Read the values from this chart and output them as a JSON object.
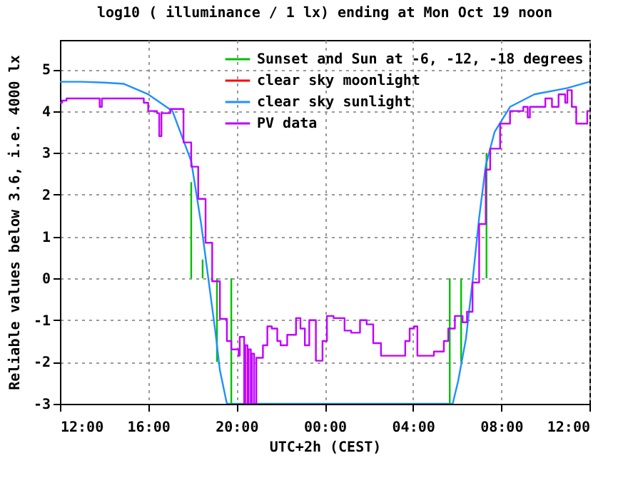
{
  "chart_data": {
    "type": "line",
    "title": "log10 ( illuminance / 1 lx) ending at Mon Oct 19 noon",
    "xlabel": "UTC+2h (CEST)",
    "ylabel": "Reliable values below 3.6, i.e. 4000 lx",
    "xlim": [
      "--10-18T12:00",
      "--10-19T12:00"
    ],
    "ylim": [
      -3,
      5.7
    ],
    "xticks": [
      {
        "value": "--10-18T12:00",
        "label": "12:00"
      },
      {
        "value": "--10-18T16:00",
        "label": "16:00"
      },
      {
        "value": "--10-18T20:00",
        "label": "20:00"
      },
      {
        "value": "--10-19T00:00",
        "label": "00:00"
      },
      {
        "value": "--10-19T04:00",
        "label": "04:00"
      },
      {
        "value": "--10-19T08:00",
        "label": "08:00"
      },
      {
        "value": "--10-19T12:00",
        "label": "12:00"
      }
    ],
    "yticks": [
      -3,
      -2,
      -1,
      0,
      1,
      2,
      3,
      4,
      5
    ],
    "grid": true,
    "legend": "top right",
    "series": [
      {
        "name": "Sunset and Sun at -6, -12, -18 degrees",
        "color": "#00c000",
        "x": [
          "--10-18T17:57",
          "--10-18T17:57",
          null,
          "--10-18T18:28",
          "--10-18T18:28",
          null,
          "--10-18T19:07",
          "--10-18T19:07",
          null,
          "--10-18T19:46",
          "--10-18T19:46",
          null,
          "--10-19T05:40",
          "--10-19T05:40",
          null,
          "--10-19T06:11",
          "--10-19T06:11",
          null,
          "--10-19T07:20",
          "--10-19T07:20"
        ],
        "values": [
          0,
          2.3,
          null,
          0,
          0.45,
          null,
          0,
          -2,
          null,
          0,
          -3,
          null,
          0,
          -3,
          null,
          0,
          -2,
          null,
          0,
          3
        ]
      },
      {
        "name": "clear sky moonlight",
        "color": "#ff0000"
      },
      {
        "name": "clear sky sunlight",
        "color": "#1e90ff",
        "x": [
          "--10-18T12:00",
          "--10-18T13:00",
          "--10-18T14:00",
          "--10-18T14:54",
          "--10-18T16:00",
          "--10-18T17:06",
          "--10-18T17:57",
          "--10-18T18:24",
          "--10-18T18:48",
          "--10-18T19:03",
          "--10-18T19:15",
          "--10-18T19:34",
          "--10-19T05:48",
          "--10-19T06:03",
          "--10-19T06:24",
          "--10-19T06:42",
          "--10-19T07:00",
          "--10-19T07:18",
          "--10-19T07:42",
          "--10-19T08:24",
          "--10-19T09:30",
          "--10-19T11:00",
          "--10-19T12:00"
        ],
        "values": [
          4.7,
          4.7,
          4.68,
          4.65,
          4.4,
          4,
          2.8,
          1.3,
          -0.3,
          -1.3,
          -2.2,
          -3,
          -3,
          -2.45,
          -1.45,
          -0.07,
          1.45,
          2.7,
          3.5,
          4.1,
          4.4,
          4.55,
          4.7
        ]
      },
      {
        "name": "PV data",
        "color": "#c000ff",
        "type": "step",
        "x": [
          "--10-18T12:00",
          "--10-18T12:06",
          "--10-18T12:18",
          "--10-18T13:00",
          "--10-18T13:48",
          "--10-18T13:54",
          "--10-18T14:30",
          "--10-18T15:30",
          "--10-18T15:48",
          "--10-18T16:00",
          "--10-18T16:24",
          "--10-18T16:30",
          "--10-18T16:36",
          "--10-18T17:00",
          "--10-18T17:36",
          "--10-18T17:57",
          "--10-18T18:16",
          "--10-18T18:36",
          "--10-18T18:54",
          "--10-18T19:15",
          "--10-18T19:34",
          "--10-18T19:46",
          "--10-18T20:06",
          "--10-18T20:09",
          "--10-18T20:21",
          "--10-18T20:24",
          "--10-18T20:30",
          "--10-18T20:33",
          "--10-18T20:39",
          "--10-18T20:42",
          "--10-18T20:48",
          "--10-18T20:54",
          "--10-18T21:00",
          "--10-18T21:12",
          "--10-18T21:24",
          "--10-18T21:36",
          "--10-18T21:51",
          "--10-18T22:00",
          "--10-18T22:18",
          "--10-18T22:42",
          "--10-18T22:54",
          "--10-18T23:06",
          "--10-18T23:18",
          "--10-18T23:36",
          "--10-18T23:54",
          "--10-19T00:06",
          "--10-19T00:24",
          "--10-19T00:54",
          "--10-19T01:12",
          "--10-19T01:36",
          "--10-19T01:54",
          "--10-19T02:12",
          "--10-19T02:33",
          "--10-19T03:27",
          "--10-19T03:39",
          "--10-19T03:51",
          "--10-19T04:03",
          "--10-19T04:12",
          "--10-19T04:57",
          "--10-19T05:24",
          "--10-19T05:36",
          "--10-19T05:54",
          "--10-19T06:15",
          "--10-19T06:27",
          "--10-19T06:42",
          "--10-19T07:00",
          "--10-19T07:18",
          "--10-19T07:30",
          "--10-19T07:57",
          "--10-19T08:24",
          "--10-19T09:00",
          "--10-19T09:12",
          "--10-19T09:18",
          "--10-19T09:30",
          "--10-19T10:00",
          "--10-19T10:18",
          "--10-19T10:36",
          "--10-19T10:54",
          "--10-19T11:00",
          "--10-19T11:12",
          "--10-19T11:24",
          "--10-19T11:36",
          "--10-19T11:54",
          "--10-19T12:00"
        ],
        "values": [
          4.2,
          4.25,
          4.3,
          4.3,
          4.1,
          4.3,
          4.3,
          4.3,
          4.2,
          4,
          3.95,
          3.4,
          3.95,
          4.05,
          3.25,
          2.67,
          1.9,
          0.85,
          -0.07,
          -0.97,
          -1.5,
          -1.7,
          -1.85,
          -1.4,
          -3,
          -1.6,
          -3,
          -1.7,
          -3,
          -1.8,
          -3,
          -1.9,
          -1.9,
          -1.6,
          -1.15,
          -1.2,
          -1.5,
          -1.6,
          -1.35,
          -0.95,
          -1.2,
          -1.6,
          -1,
          -1.97,
          -1.5,
          -0.9,
          -0.95,
          -1.25,
          -1.3,
          -1,
          -1.1,
          -1.55,
          -1.85,
          -1.85,
          -1.5,
          -1.2,
          -1.15,
          -1.85,
          -1.75,
          -1.5,
          -1.2,
          -0.9,
          -1.05,
          -0.8,
          -0.1,
          1.3,
          2.6,
          3.1,
          3.7,
          4,
          4.1,
          3.85,
          4.1,
          4.1,
          4.3,
          4.1,
          4.4,
          4.2,
          4.5,
          4.1,
          3.7,
          3.7,
          4,
          4
        ]
      }
    ]
  }
}
